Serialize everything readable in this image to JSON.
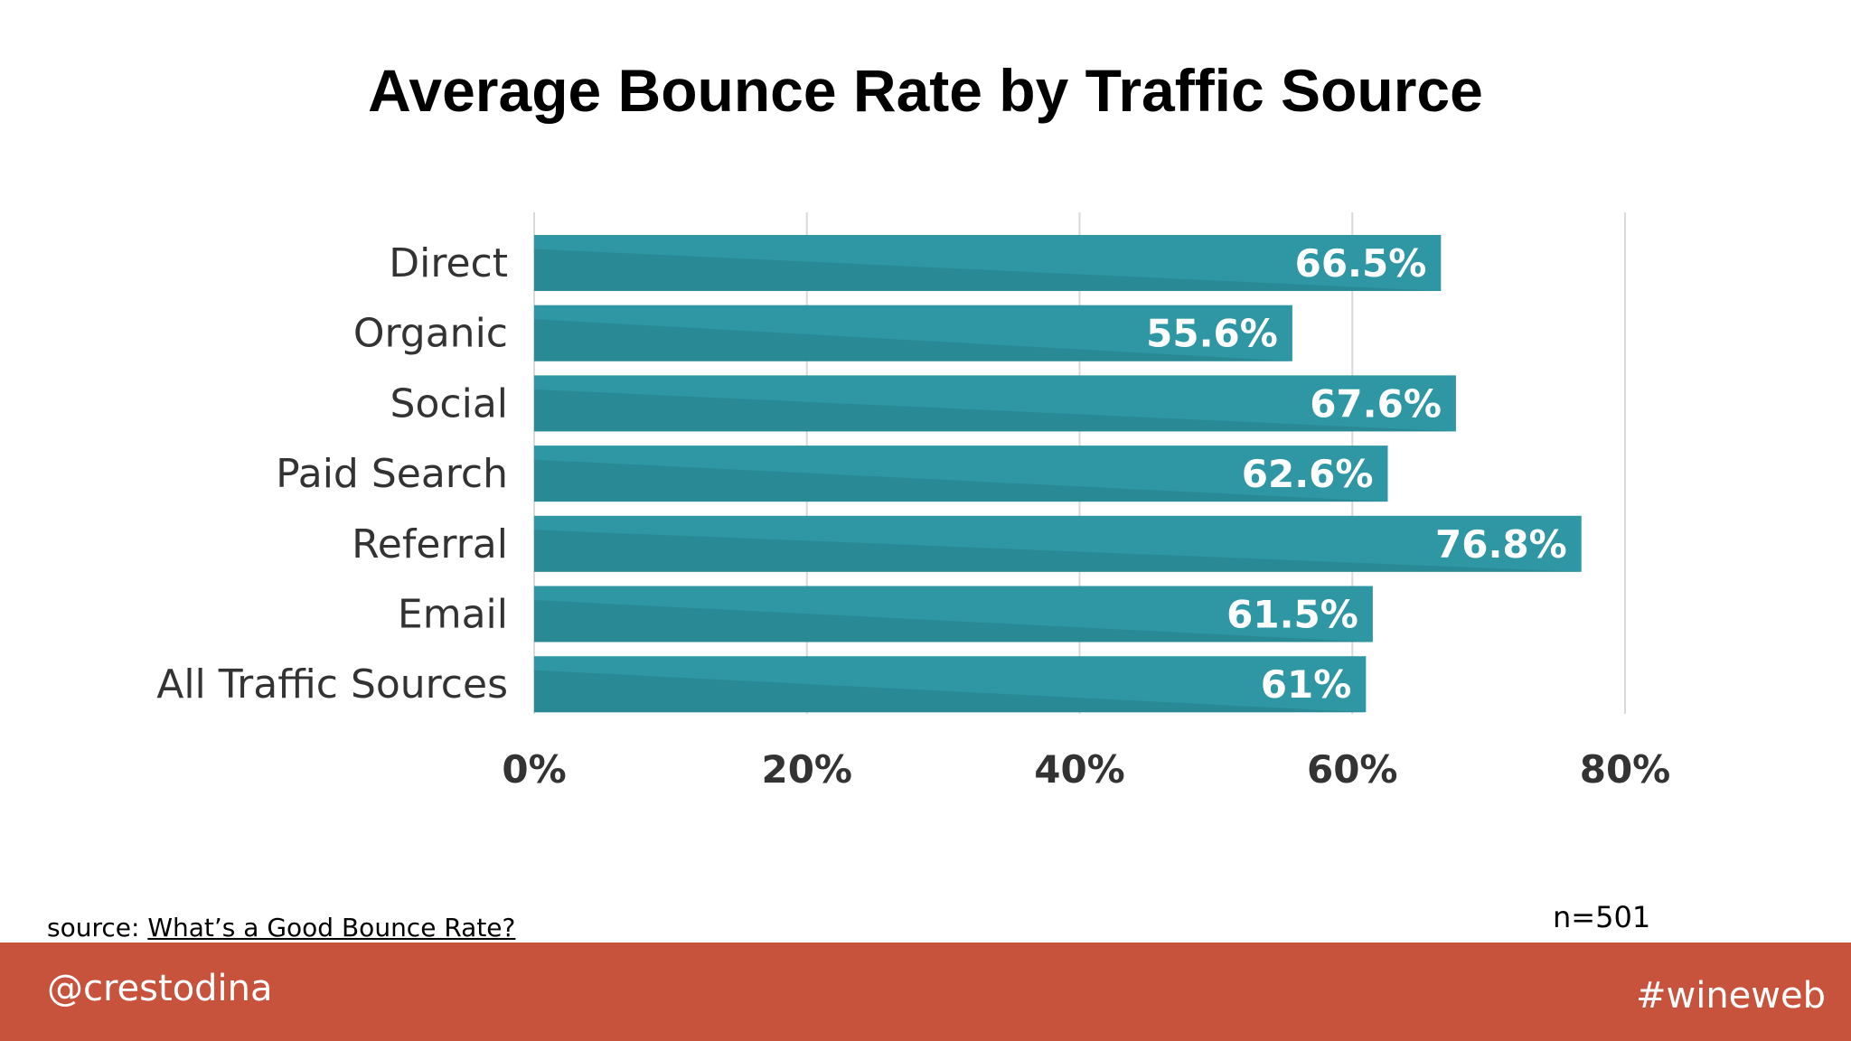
{
  "slide": {
    "title": "Average Bounce Rate by Traffic Source",
    "source_prefix": "source: ",
    "source_link_text": "What’s a Good Bounce Rate?",
    "sample_size": "n=501",
    "footer_handle": "@crestodina",
    "footer_hashtag": "#wineweb"
  },
  "colors": {
    "bar": "#2e97a3",
    "bar_dark": "#267f8a",
    "footer": "#c7533d"
  },
  "chart_data": {
    "type": "bar",
    "orientation": "horizontal",
    "categories": [
      "Direct",
      "Organic",
      "Social",
      "Paid Search",
      "Referral",
      "Email",
      "All Traffic Sources"
    ],
    "values": [
      66.5,
      55.6,
      67.6,
      62.6,
      76.8,
      61.5,
      61
    ],
    "value_labels": [
      "66.5%",
      "55.6%",
      "67.6%",
      "62.6%",
      "76.8%",
      "61.5%",
      "61%"
    ],
    "xlim": [
      0,
      80
    ],
    "xticks": [
      0,
      20,
      40,
      60,
      80
    ],
    "xtick_labels": [
      "0%",
      "20%",
      "40%",
      "60%",
      "80%"
    ],
    "grid": true,
    "legend": "none"
  }
}
